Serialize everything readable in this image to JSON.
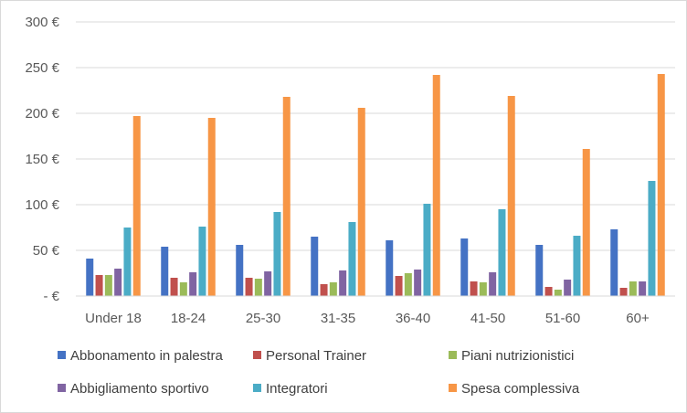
{
  "chart_data": {
    "type": "bar",
    "categories": [
      "Under 18",
      "18-24",
      "25-30",
      "31-35",
      "36-40",
      "41-50",
      "51-60",
      "60+"
    ],
    "series": [
      {
        "name": "Abbonamento in palestra",
        "color": "#4472c4",
        "values": [
          41,
          54,
          56,
          65,
          61,
          63,
          56,
          73
        ]
      },
      {
        "name": "Personal Trainer",
        "color": "#c0504d",
        "values": [
          23,
          20,
          20,
          13,
          22,
          16,
          10,
          9
        ]
      },
      {
        "name": "Piani nutrizionistici",
        "color": "#9bbb59",
        "values": [
          23,
          15,
          19,
          15,
          25,
          15,
          7,
          16
        ]
      },
      {
        "name": "Abbigliamento sportivo",
        "color": "#8064a2",
        "values": [
          30,
          26,
          27,
          28,
          29,
          26,
          18,
          16
        ]
      },
      {
        "name": "Integratori",
        "color": "#4bacc6",
        "values": [
          75,
          76,
          92,
          81,
          101,
          95,
          66,
          126
        ]
      },
      {
        "name": "Spesa complessiva",
        "color": "#f79646",
        "values": [
          197,
          195,
          218,
          206,
          242,
          219,
          161,
          243
        ]
      }
    ],
    "ylim": [
      0,
      300
    ],
    "y_ticks": [
      0,
      50,
      100,
      150,
      200,
      250,
      300
    ],
    "y_tick_labels": [
      "-   €",
      "50 €",
      "100 €",
      "150 €",
      "200 €",
      "250 €",
      "300 €"
    ],
    "grid": true,
    "legend_position": "bottom"
  }
}
